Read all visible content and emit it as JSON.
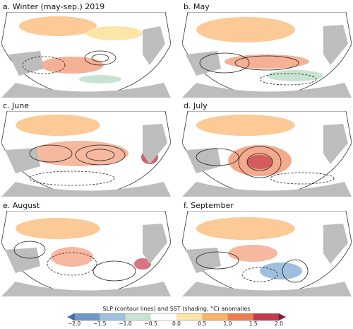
{
  "panels": [
    {
      "title": "a. Winter (may-sep.) 2019"
    },
    {
      "title": "b. May"
    },
    {
      "title": "c. June"
    },
    {
      "title": "d. July"
    },
    {
      "title": "e. August"
    },
    {
      "title": "f. September"
    }
  ],
  "colorbar": {
    "title": "SLP (contour lines) and SST (shading, °C) anomalies",
    "ticks": [
      "−2.0",
      "−1.5",
      "−1.0",
      "−0.5",
      "0.0",
      "0.5",
      "1.0",
      "1.5",
      "2.0"
    ],
    "colors": [
      "#4a6fb3",
      "#6f97c7",
      "#9ec0dc",
      "#c9e3d2",
      "#ffffff",
      "#fde4a9",
      "#f9b46a",
      "#ee7d4f",
      "#c53a4c",
      "#8e1a3b"
    ]
  },
  "styles": {
    "land": "#bdbdbd",
    "frame": "#333333",
    "contour": "#222222"
  }
}
